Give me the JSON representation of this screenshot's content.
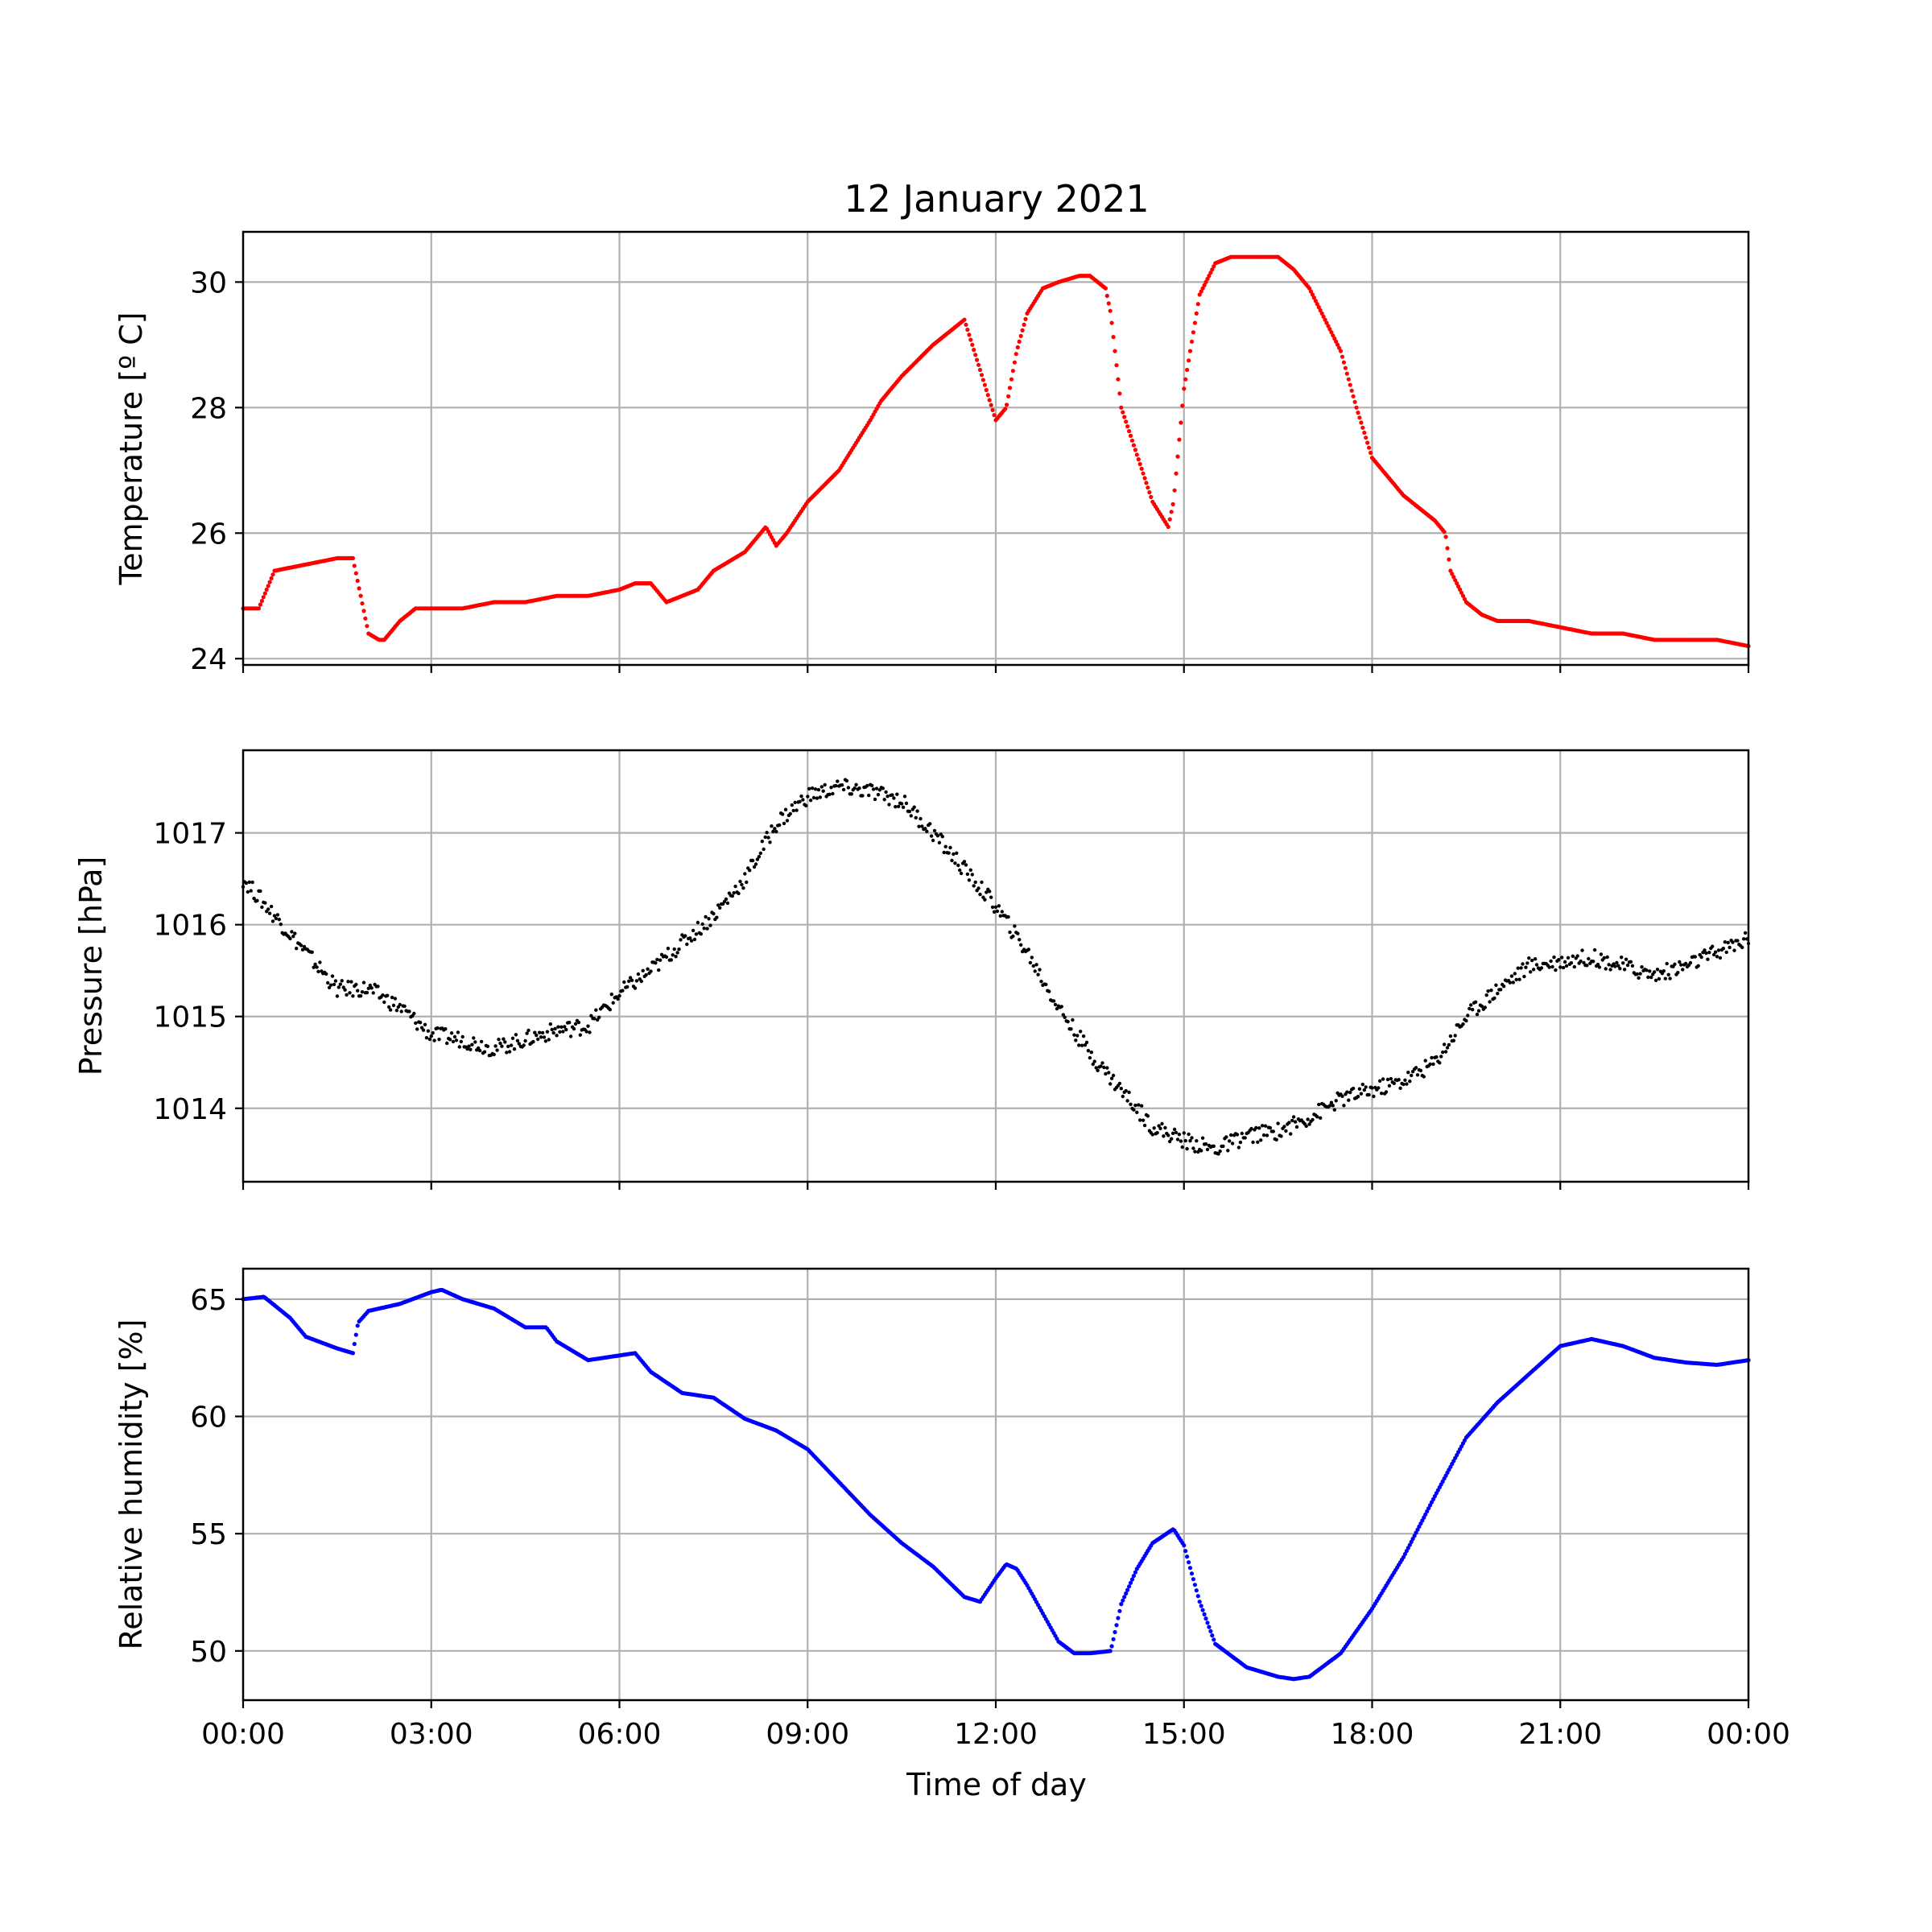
{
  "figure": {
    "title": "12 January 2021",
    "xlabel": "Time of day"
  },
  "chart_data": [
    {
      "type": "scatter",
      "title": "12 January 2021",
      "xlabel": "",
      "ylabel": "Temperature [º C]",
      "color": "#ff0000",
      "xlim": [
        "00:00",
        "24:00"
      ],
      "ylim": [
        23.9,
        30.8
      ],
      "x_ticks": [
        "00:00",
        "03:00",
        "06:00",
        "09:00",
        "12:00",
        "15:00",
        "18:00",
        "21:00",
        "00:00"
      ],
      "y_ticks": [
        24,
        26,
        28,
        30
      ],
      "grid": true,
      "x": [
        "00:00",
        "00:15",
        "00:30",
        "01:00",
        "01:30",
        "01:40",
        "01:45",
        "02:00",
        "02:10",
        "02:15",
        "02:30",
        "02:45",
        "03:00",
        "03:15",
        "03:30",
        "04:00",
        "04:30",
        "05:00",
        "05:30",
        "06:00",
        "06:15",
        "06:30",
        "06:45",
        "07:00",
        "07:15",
        "07:30",
        "08:00",
        "08:15",
        "08:20",
        "08:30",
        "08:40",
        "09:00",
        "09:30",
        "10:00",
        "10:10",
        "10:30",
        "11:00",
        "11:30",
        "11:45",
        "12:00",
        "12:10",
        "12:20",
        "12:30",
        "12:45",
        "13:00",
        "13:20",
        "13:30",
        "13:45",
        "13:50",
        "14:00",
        "14:30",
        "14:45",
        "14:50",
        "15:00",
        "15:15",
        "15:30",
        "15:45",
        "16:00",
        "16:30",
        "16:45",
        "17:00",
        "17:30",
        "17:45",
        "18:00",
        "18:30",
        "19:00",
        "19:10",
        "19:15",
        "19:30",
        "19:45",
        "20:00",
        "20:30",
        "21:00",
        "21:30",
        "22:00",
        "22:30",
        "23:00",
        "23:30",
        "24:00"
      ],
      "y": [
        24.8,
        24.8,
        25.4,
        25.5,
        25.6,
        25.6,
        25.6,
        24.4,
        24.3,
        24.3,
        24.6,
        24.8,
        24.8,
        24.8,
        24.8,
        24.9,
        24.9,
        25.0,
        25.0,
        25.1,
        25.2,
        25.2,
        24.9,
        25.0,
        25.1,
        25.4,
        25.7,
        26.0,
        26.1,
        25.8,
        26.0,
        26.5,
        27.0,
        27.8,
        28.1,
        28.5,
        29.0,
        29.4,
        28.6,
        27.8,
        28.0,
        28.9,
        29.5,
        29.9,
        30.0,
        30.1,
        30.1,
        29.9,
        29.5,
        28.0,
        26.5,
        26.1,
        26.5,
        28.3,
        29.8,
        30.3,
        30.4,
        30.4,
        30.4,
        30.2,
        29.9,
        28.9,
        28.0,
        27.2,
        26.6,
        26.2,
        26.0,
        25.4,
        24.9,
        24.7,
        24.6,
        24.6,
        24.5,
        24.4,
        24.4,
        24.3,
        24.3,
        24.3,
        24.2
      ]
    },
    {
      "type": "scatter",
      "xlabel": "",
      "ylabel": "Pressure [hPa]",
      "color": "#000000",
      "xlim": [
        "00:00",
        "24:00"
      ],
      "ylim": [
        1013.2,
        1017.9
      ],
      "x_ticks": [
        "00:00",
        "03:00",
        "06:00",
        "09:00",
        "12:00",
        "15:00",
        "18:00",
        "21:00",
        "00:00"
      ],
      "y_ticks": [
        1014,
        1015,
        1016,
        1017
      ],
      "grid": true,
      "x": [
        "00:00",
        "00:30",
        "01:00",
        "01:30",
        "02:00",
        "02:30",
        "03:00",
        "03:30",
        "04:00",
        "04:30",
        "05:00",
        "05:30",
        "06:00",
        "06:30",
        "07:00",
        "07:30",
        "08:00",
        "08:30",
        "09:00",
        "09:30",
        "10:00",
        "10:30",
        "11:00",
        "11:30",
        "12:00",
        "12:30",
        "13:00",
        "13:30",
        "14:00",
        "14:30",
        "15:00",
        "15:30",
        "16:00",
        "16:30",
        "17:00",
        "17:30",
        "18:00",
        "18:30",
        "19:00",
        "19:30",
        "20:00",
        "20:30",
        "21:00",
        "21:30",
        "22:00",
        "22:30",
        "23:00",
        "23:30",
        "24:00"
      ],
      "y": [
        1016.5,
        1016.1,
        1015.7,
        1015.3,
        1015.3,
        1015.1,
        1014.8,
        1014.75,
        1014.65,
        1014.75,
        1014.85,
        1014.9,
        1015.25,
        1015.5,
        1015.8,
        1016.1,
        1016.5,
        1017.1,
        1017.4,
        1017.5,
        1017.45,
        1017.35,
        1017.0,
        1016.6,
        1016.2,
        1015.7,
        1015.1,
        1014.6,
        1014.2,
        1013.8,
        1013.65,
        1013.55,
        1013.7,
        1013.75,
        1013.9,
        1014.1,
        1014.2,
        1014.3,
        1014.5,
        1015.0,
        1015.3,
        1015.55,
        1015.6,
        1015.65,
        1015.55,
        1015.45,
        1015.55,
        1015.7,
        1015.85
      ]
    },
    {
      "type": "scatter",
      "xlabel": "Time of day",
      "ylabel": "Relative humidity [%]",
      "color": "#0000ff",
      "xlim": [
        "00:00",
        "24:00"
      ],
      "ylim": [
        47.9,
        66.3
      ],
      "x_ticks": [
        "00:00",
        "03:00",
        "06:00",
        "09:00",
        "12:00",
        "15:00",
        "18:00",
        "21:00",
        "00:00"
      ],
      "y_ticks": [
        50,
        55,
        60,
        65
      ],
      "grid": true,
      "x": [
        "00:00",
        "00:20",
        "00:45",
        "01:00",
        "01:30",
        "01:45",
        "01:50",
        "02:00",
        "02:30",
        "03:00",
        "03:10",
        "03:30",
        "04:00",
        "04:30",
        "04:50",
        "05:00",
        "05:30",
        "06:00",
        "06:15",
        "06:30",
        "07:00",
        "07:30",
        "08:00",
        "08:30",
        "09:00",
        "09:30",
        "10:00",
        "10:30",
        "11:00",
        "11:30",
        "11:45",
        "12:00",
        "12:10",
        "12:20",
        "12:30",
        "13:00",
        "13:15",
        "13:30",
        "13:50",
        "14:00",
        "14:15",
        "14:30",
        "14:50",
        "15:00",
        "15:15",
        "15:30",
        "16:00",
        "16:30",
        "16:45",
        "17:00",
        "17:30",
        "18:00",
        "18:30",
        "19:00",
        "19:30",
        "20:00",
        "20:30",
        "21:00",
        "21:30",
        "22:00",
        "22:30",
        "23:00",
        "23:30",
        "24:00"
      ],
      "y": [
        65.0,
        65.1,
        64.2,
        63.4,
        62.9,
        62.7,
        64.0,
        64.5,
        64.8,
        65.3,
        65.4,
        65.0,
        64.6,
        63.8,
        63.8,
        63.2,
        62.4,
        62.6,
        62.7,
        61.9,
        61.0,
        60.8,
        59.9,
        59.4,
        58.6,
        57.2,
        55.8,
        54.6,
        53.6,
        52.3,
        52.1,
        53.1,
        53.7,
        53.5,
        52.8,
        50.4,
        49.9,
        49.9,
        50.0,
        52.0,
        53.5,
        54.6,
        55.2,
        54.5,
        52.1,
        50.3,
        49.3,
        48.9,
        48.8,
        48.9,
        49.9,
        51.8,
        54.0,
        56.6,
        59.1,
        60.6,
        61.8,
        63.0,
        63.3,
        63.0,
        62.5,
        62.3,
        62.2,
        62.4
      ]
    }
  ]
}
